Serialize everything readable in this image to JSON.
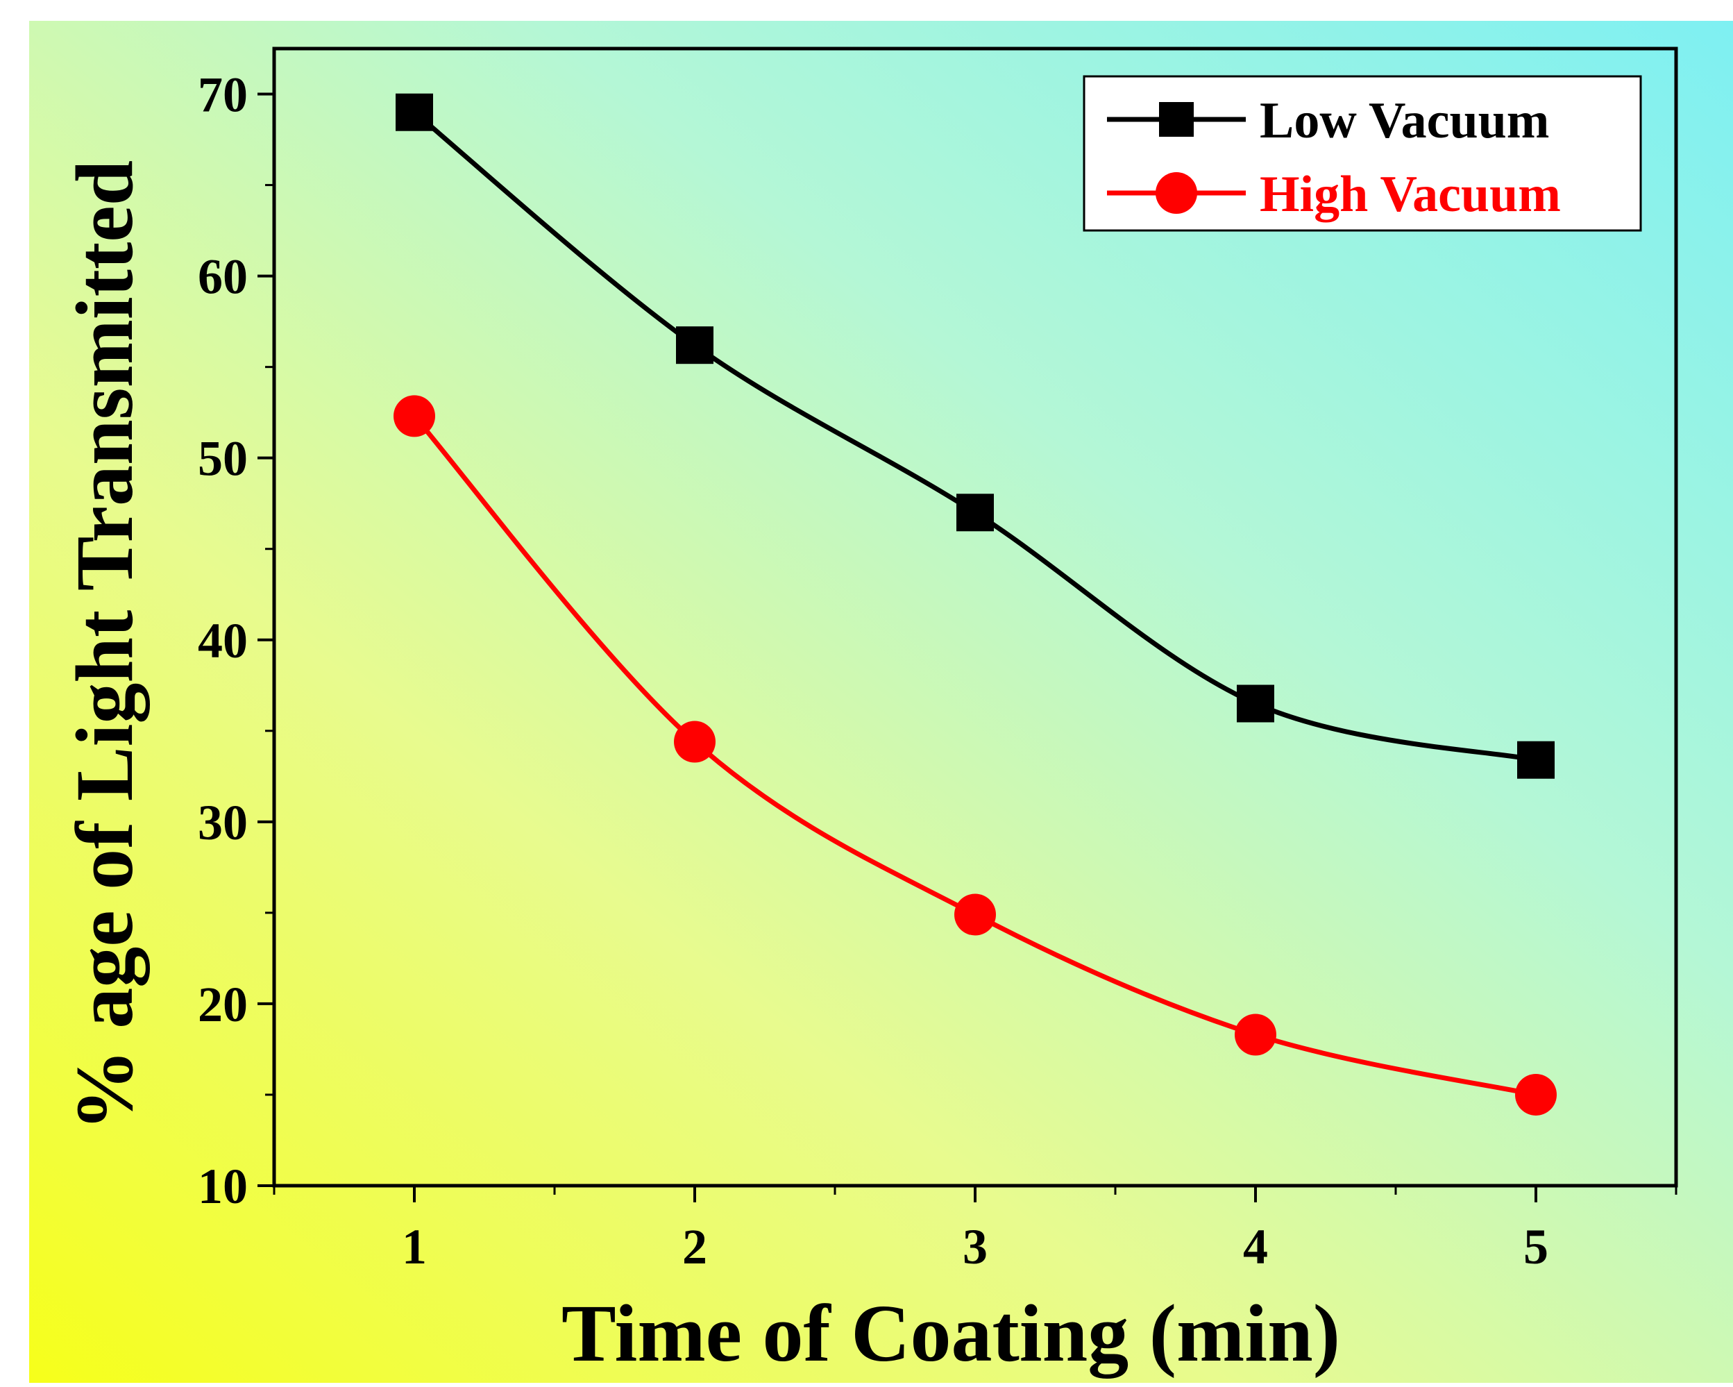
{
  "chart_data": {
    "type": "line",
    "title": "",
    "xlabel": "Time of Coating (min)",
    "ylabel": "% age of Light Transmitted",
    "xlim": [
      0.5,
      5.5
    ],
    "ylim": [
      10,
      72.5
    ],
    "x_ticks": [
      "1",
      "2",
      "3",
      "4",
      "5"
    ],
    "y_ticks": [
      "10",
      "20",
      "30",
      "40",
      "50",
      "60",
      "70"
    ],
    "grid": false,
    "legend_position": "top-right",
    "x": [
      1,
      2,
      3,
      4,
      5
    ],
    "series": [
      {
        "name": "Low Vacuum",
        "color": "#000000",
        "marker": "square",
        "values": [
          69.0,
          56.2,
          47.0,
          36.5,
          33.4
        ]
      },
      {
        "name": "High Vacuum",
        "color": "#ff0000",
        "marker": "circle",
        "values": [
          52.3,
          34.4,
          24.9,
          18.3,
          15.0
        ]
      }
    ]
  }
}
